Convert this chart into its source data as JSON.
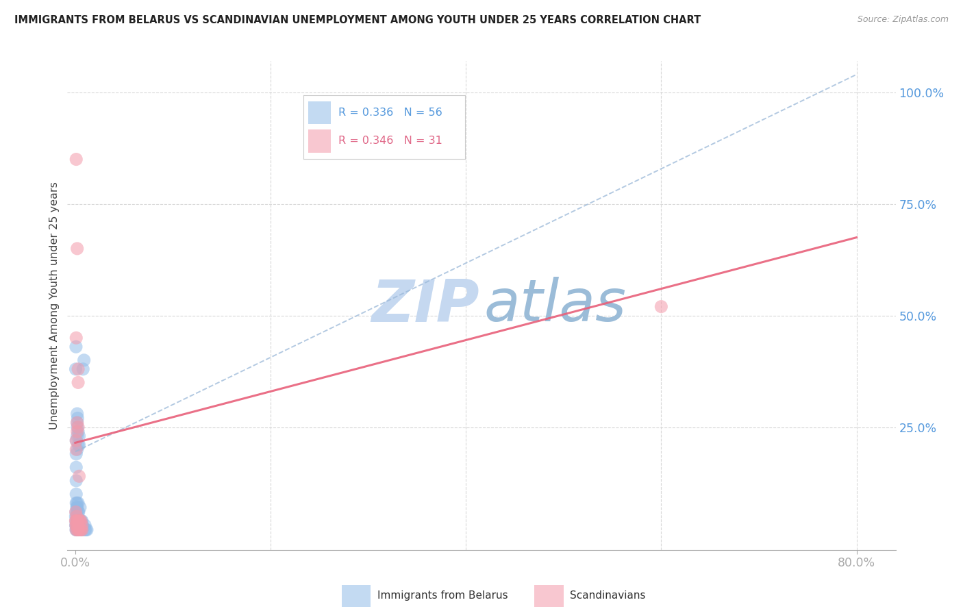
{
  "title": "IMMIGRANTS FROM BELARUS VS SCANDINAVIAN UNEMPLOYMENT AMONG YOUTH UNDER 25 YEARS CORRELATION CHART",
  "source": "Source: ZipAtlas.com",
  "ylabel": "Unemployment Among Youth under 25 years",
  "legend_blue_r": "R = 0.336",
  "legend_blue_n": "N = 56",
  "legend_pink_r": "R = 0.346",
  "legend_pink_n": "N = 31",
  "legend_label_blue": "Immigrants from Belarus",
  "legend_label_pink": "Scandinavians",
  "scatter_blue_color": "#92bce8",
  "scatter_pink_color": "#f49aaa",
  "trend_blue_color": "#9ab8d8",
  "trend_pink_color": "#e8607a",
  "bg_color": "#ffffff",
  "grid_color": "#d8d8d8",
  "watermark_zip_color": "#c5d8f0",
  "watermark_atlas_color": "#9bbcd8",
  "title_color": "#222222",
  "source_color": "#999999",
  "tick_color": "#5599dd",
  "ylabel_color": "#444444",
  "legend_border_color": "#cccccc",
  "blue_scatter_x": [
    0.0004,
    0.0005,
    0.0006,
    0.0007,
    0.0008,
    0.0009,
    0.001,
    0.001,
    0.001,
    0.001,
    0.001,
    0.001,
    0.0012,
    0.0013,
    0.0014,
    0.0015,
    0.0016,
    0.0017,
    0.0018,
    0.002,
    0.002,
    0.002,
    0.002,
    0.002,
    0.002,
    0.002,
    0.002,
    0.0022,
    0.0025,
    0.003,
    0.003,
    0.003,
    0.003,
    0.003,
    0.003,
    0.0035,
    0.004,
    0.004,
    0.004,
    0.004,
    0.005,
    0.005,
    0.005,
    0.006,
    0.006,
    0.007,
    0.007,
    0.0075,
    0.008,
    0.009,
    0.01,
    0.01,
    0.011,
    0.012,
    0.0005,
    0.0008
  ],
  "blue_scatter_y": [
    0.05,
    0.03,
    0.04,
    0.06,
    0.02,
    0.03,
    0.08,
    0.1,
    0.13,
    0.16,
    0.19,
    0.22,
    0.02,
    0.03,
    0.05,
    0.07,
    0.04,
    0.06,
    0.08,
    0.02,
    0.03,
    0.05,
    0.07,
    0.2,
    0.23,
    0.26,
    0.28,
    0.25,
    0.27,
    0.02,
    0.04,
    0.06,
    0.08,
    0.21,
    0.24,
    0.06,
    0.02,
    0.04,
    0.21,
    0.23,
    0.02,
    0.04,
    0.07,
    0.02,
    0.04,
    0.02,
    0.04,
    0.03,
    0.38,
    0.4,
    0.02,
    0.03,
    0.02,
    0.02,
    0.38,
    0.43
  ],
  "pink_scatter_x": [
    0.0004,
    0.0006,
    0.0008,
    0.001,
    0.001,
    0.001,
    0.001,
    0.001,
    0.0012,
    0.0015,
    0.002,
    0.002,
    0.002,
    0.002,
    0.002,
    0.003,
    0.003,
    0.003,
    0.003,
    0.003,
    0.004,
    0.004,
    0.004,
    0.005,
    0.005,
    0.006,
    0.006,
    0.007,
    0.007,
    0.001,
    0.6
  ],
  "pink_scatter_y": [
    0.04,
    0.06,
    0.03,
    0.02,
    0.04,
    0.2,
    0.22,
    0.45,
    0.03,
    0.05,
    0.02,
    0.04,
    0.24,
    0.26,
    0.65,
    0.02,
    0.04,
    0.25,
    0.35,
    0.38,
    0.02,
    0.04,
    0.14,
    0.02,
    0.04,
    0.02,
    0.04,
    0.02,
    0.03,
    0.85,
    0.52
  ],
  "blue_trend_x0": 0.0,
  "blue_trend_x1": 0.8,
  "blue_trend_y0": 0.195,
  "blue_trend_y1": 1.04,
  "pink_trend_x0": 0.0,
  "pink_trend_x1": 0.8,
  "pink_trend_y0": 0.215,
  "pink_trend_y1": 0.675,
  "xlim_min": -0.008,
  "xlim_max": 0.84,
  "ylim_min": -0.025,
  "ylim_max": 1.07,
  "ytick_vals": [
    0.25,
    0.5,
    0.75,
    1.0
  ],
  "ytick_labels": [
    "25.0%",
    "50.0%",
    "75.0%",
    "100.0%"
  ],
  "xtick_vals": [
    0.0,
    0.8
  ],
  "xtick_labels": [
    "0.0%",
    "80.0%"
  ]
}
